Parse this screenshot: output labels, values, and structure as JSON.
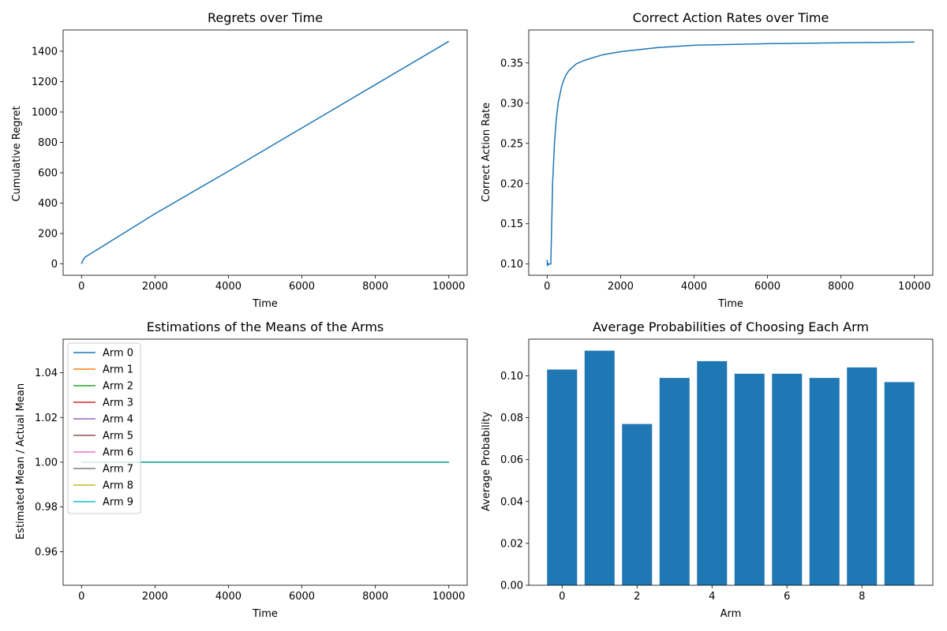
{
  "chart_data": [
    {
      "type": "line",
      "title": "Regrets over Time",
      "xlabel": "Time",
      "ylabel": "Cumulative Regret",
      "xlim": [
        -500,
        10500
      ],
      "ylim": [
        -75,
        1540
      ],
      "xticks": [
        0,
        2000,
        4000,
        6000,
        8000,
        10000
      ],
      "yticks": [
        0,
        200,
        400,
        600,
        800,
        1000,
        1200,
        1400
      ],
      "color": "#1f77b4",
      "series": [
        {
          "x": [
            0,
            20,
            50,
            100,
            150,
            2000,
            4000,
            6000,
            8000,
            10000
          ],
          "y": [
            0,
            12,
            28,
            45,
            52,
            330,
            610,
            895,
            1180,
            1465
          ]
        }
      ]
    },
    {
      "type": "line",
      "title": "Correct Action Rates over Time",
      "xlabel": "Time",
      "ylabel": "Correct Action Rate",
      "xlim": [
        -500,
        10500
      ],
      "ylim": [
        0.086,
        0.391
      ],
      "xticks": [
        0,
        2000,
        4000,
        6000,
        8000,
        10000
      ],
      "yticks": [
        0.1,
        0.15,
        0.2,
        0.25,
        0.3,
        0.35
      ],
      "ytick_labels": [
        "0.10",
        "0.15",
        "0.20",
        "0.25",
        "0.30",
        "0.35"
      ],
      "color": "#1f77b4",
      "series": [
        {
          "x": [
            0,
            10,
            20,
            30,
            50,
            80,
            100,
            120,
            150,
            200,
            250,
            300,
            400,
            500,
            600,
            800,
            1000,
            1500,
            2000,
            3000,
            4000,
            5000,
            6000,
            8000,
            10000
          ],
          "y": [
            0.105,
            0.098,
            0.101,
            0.099,
            0.1,
            0.1,
            0.1,
            0.14,
            0.2,
            0.25,
            0.28,
            0.3,
            0.322,
            0.334,
            0.341,
            0.349,
            0.353,
            0.36,
            0.364,
            0.369,
            0.372,
            0.373,
            0.374,
            0.375,
            0.376
          ]
        }
      ]
    },
    {
      "type": "line",
      "title": "Estimations of the Means of the Arms",
      "xlabel": "Time",
      "ylabel": "Estimated Mean / Actual Mean",
      "xlim": [
        -500,
        10500
      ],
      "ylim": [
        0.945,
        1.055
      ],
      "xticks": [
        0,
        2000,
        4000,
        6000,
        8000,
        10000
      ],
      "yticks": [
        0.96,
        0.98,
        1.0,
        1.02,
        1.04
      ],
      "ytick_labels": [
        "0.96",
        "0.98",
        "1.00",
        "1.02",
        "1.04"
      ],
      "legend": "upper-left",
      "series": [
        {
          "name": "Arm 0",
          "color": "#1f77b4",
          "x": [
            0,
            10000
          ],
          "y": [
            1.0,
            1.0
          ]
        },
        {
          "name": "Arm 1",
          "color": "#ff7f0e",
          "x": [
            0,
            10000
          ],
          "y": [
            1.0,
            1.0
          ]
        },
        {
          "name": "Arm 2",
          "color": "#2ca02c",
          "x": [
            0,
            10000
          ],
          "y": [
            1.0,
            1.0
          ]
        },
        {
          "name": "Arm 3",
          "color": "#d62728",
          "x": [
            0,
            10000
          ],
          "y": [
            1.0,
            1.0
          ]
        },
        {
          "name": "Arm 4",
          "color": "#9467bd",
          "x": [
            0,
            10000
          ],
          "y": [
            1.0,
            1.0
          ]
        },
        {
          "name": "Arm 5",
          "color": "#8c564b",
          "x": [
            0,
            10000
          ],
          "y": [
            1.0,
            1.0
          ]
        },
        {
          "name": "Arm 6",
          "color": "#e377c2",
          "x": [
            0,
            10000
          ],
          "y": [
            1.0,
            1.0
          ]
        },
        {
          "name": "Arm 7",
          "color": "#7f7f7f",
          "x": [
            0,
            10000
          ],
          "y": [
            1.0,
            1.0
          ]
        },
        {
          "name": "Arm 8",
          "color": "#bcbd22",
          "x": [
            0,
            10000
          ],
          "y": [
            1.0,
            1.0
          ]
        },
        {
          "name": "Arm 9",
          "color": "#17becf",
          "x": [
            0,
            10000
          ],
          "y": [
            1.0,
            1.0
          ]
        }
      ]
    },
    {
      "type": "bar",
      "title": "Average Probabilities of Choosing Each Arm",
      "xlabel": "Arm",
      "ylabel": "Average Probability",
      "xlim": [
        -0.89,
        9.89
      ],
      "ylim": [
        0,
        0.1175
      ],
      "xticks": [
        0,
        2,
        4,
        6,
        8
      ],
      "yticks": [
        0.0,
        0.02,
        0.04,
        0.06,
        0.08,
        0.1
      ],
      "ytick_labels": [
        "0.00",
        "0.02",
        "0.04",
        "0.06",
        "0.08",
        "0.10"
      ],
      "color": "#1f77b4",
      "categories": [
        0,
        1,
        2,
        3,
        4,
        5,
        6,
        7,
        8,
        9
      ],
      "values": [
        0.103,
        0.112,
        0.077,
        0.099,
        0.107,
        0.101,
        0.101,
        0.099,
        0.104,
        0.097
      ]
    }
  ]
}
